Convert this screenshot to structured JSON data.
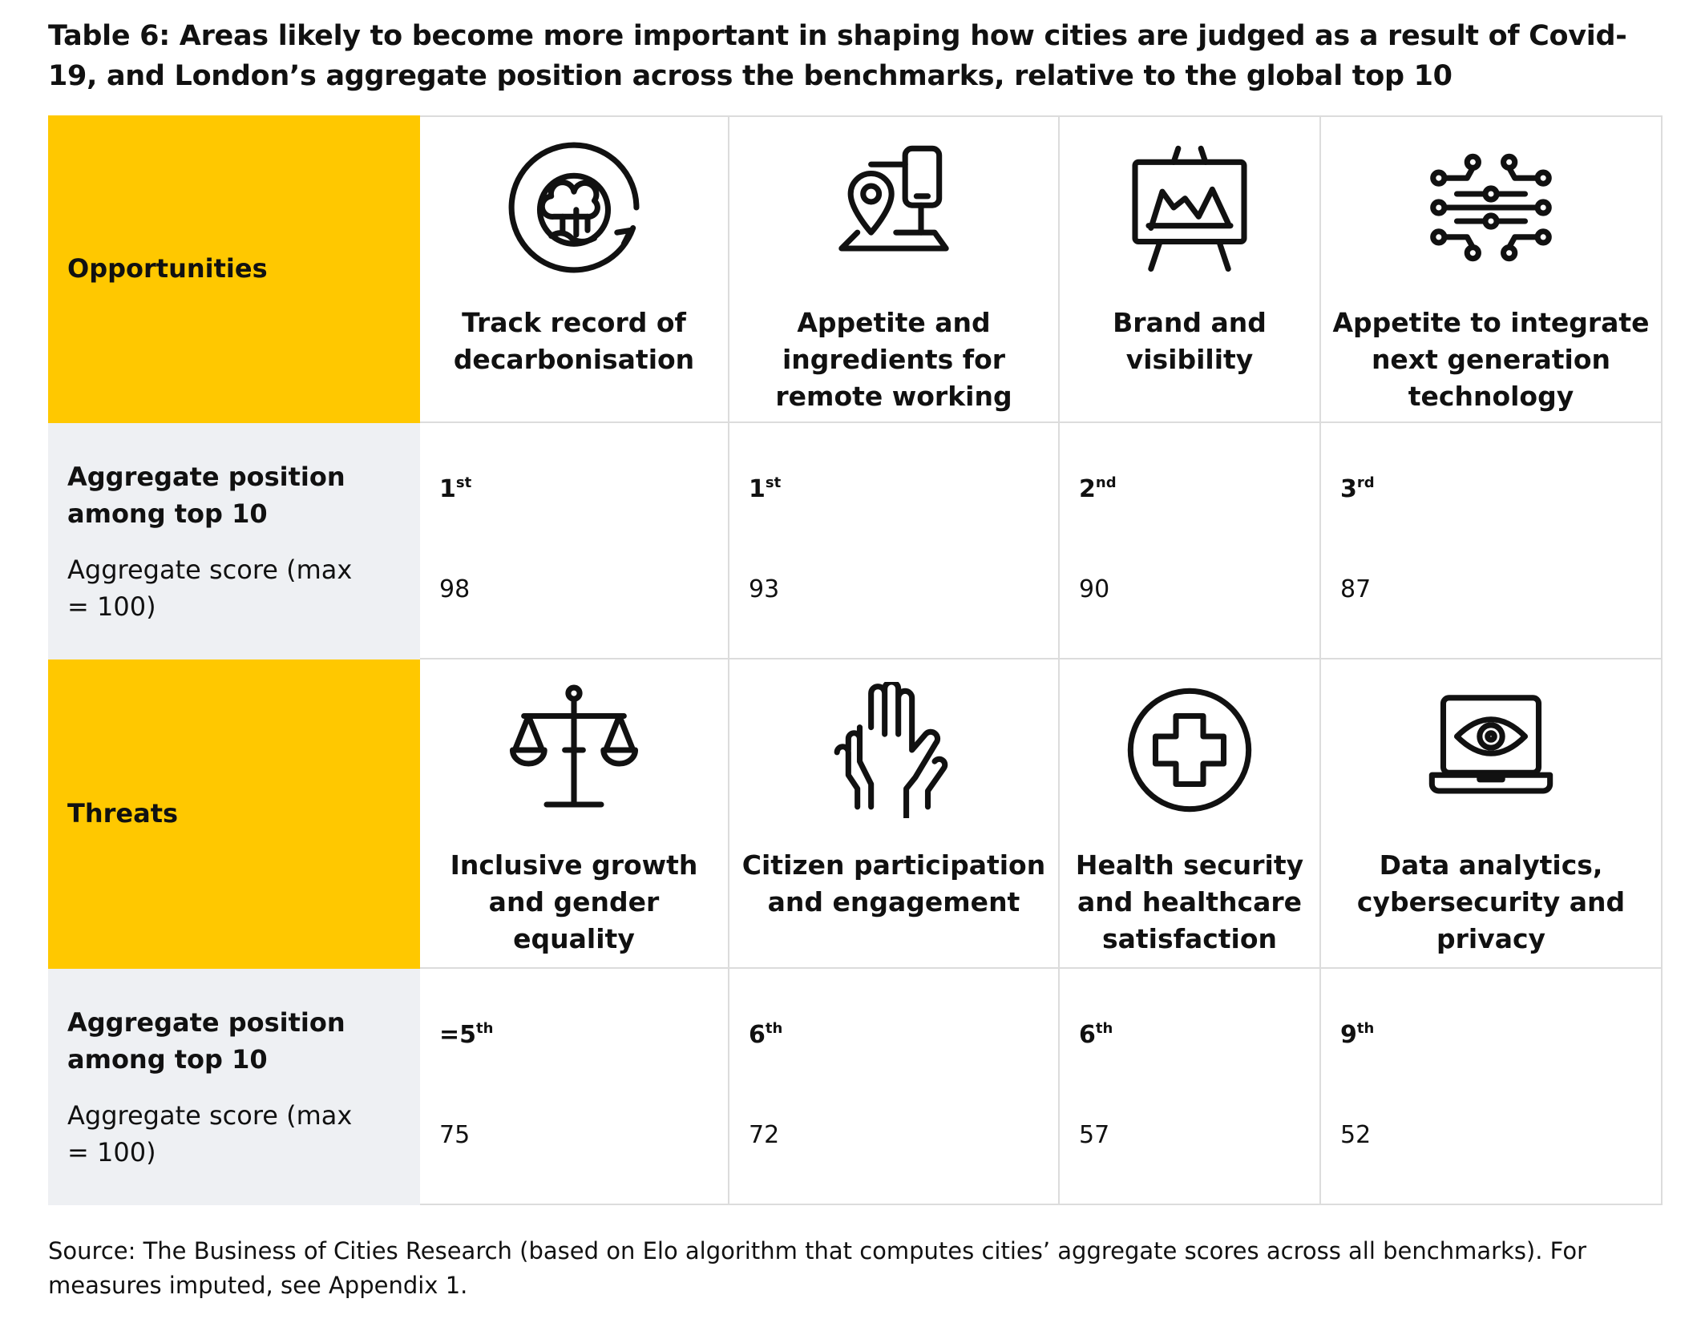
{
  "title": "Table 6: Areas likely to become more important in shaping how cities are judged as a result of Covid-19, and London’s aggregate position across the benchmarks, relative to the global top 10",
  "sections": [
    {
      "label": "Opportunities",
      "position_label": "Aggregate position among top 10",
      "score_label": "Aggregate score (max = 100)",
      "items": [
        {
          "title": "Track record of decarbonisation",
          "position": "1",
          "position_suffix": "st",
          "score": 98
        },
        {
          "title": "Appetite and ingredients for remote working",
          "position": "1",
          "position_suffix": "st",
          "score": 93
        },
        {
          "title": "Brand and visibility",
          "position": "2",
          "position_suffix": "nd",
          "score": 90
        },
        {
          "title": "Appetite to integrate next generation technology",
          "position": "3",
          "position_suffix": "rd",
          "score": 87
        }
      ]
    },
    {
      "label": "Threats",
      "position_label": "Aggregate position among top 10",
      "score_label": "Aggregate score (max = 100)",
      "items": [
        {
          "title": "Inclusive growth and gender equality",
          "position": "=5",
          "position_suffix": "th",
          "score": 75
        },
        {
          "title": "Citizen participation and engagement",
          "position": "6",
          "position_suffix": "th",
          "score": 72
        },
        {
          "title": "Health security and healthcare satisfaction",
          "position": "6",
          "position_suffix": "th",
          "score": 57
        },
        {
          "title": "Data analytics, cybersecurity and privacy",
          "position": "9",
          "position_suffix": "th",
          "score": 52
        }
      ]
    }
  ],
  "source": "Source: The Business of Cities Research (based on Elo algorithm that computes cities’ aggregate scores across all benchmarks). For measures imputed, see Appendix 1."
}
